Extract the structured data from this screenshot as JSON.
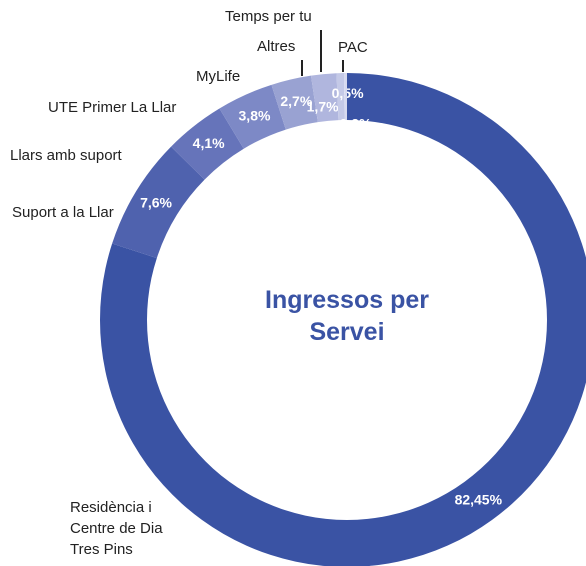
{
  "chart_data": {
    "type": "donut",
    "title": "Ingressos per Servei",
    "categories": [
      "Residència i Centre de Dia Tres Pins",
      "Suport a la Llar",
      "Llars amb suport",
      "UTE Primer La Llar",
      "MyLife",
      "Altres",
      "Temps per tu",
      "PAC"
    ],
    "values": [
      82.45,
      7.6,
      4.1,
      3.8,
      2.7,
      1.7,
      0.5,
      0.2
    ],
    "value_labels": [
      "82,45%",
      "7,6%",
      "4,1%",
      "3,8%",
      "2,7%",
      "1,7%",
      "0,5%",
      "0,2%"
    ],
    "colors": [
      "#3a53a4",
      "#4f62ae",
      "#6674ba",
      "#7d89c6",
      "#99a2d2",
      "#b0b6de",
      "#c4c9e7",
      "#d7daf0"
    ]
  }
}
